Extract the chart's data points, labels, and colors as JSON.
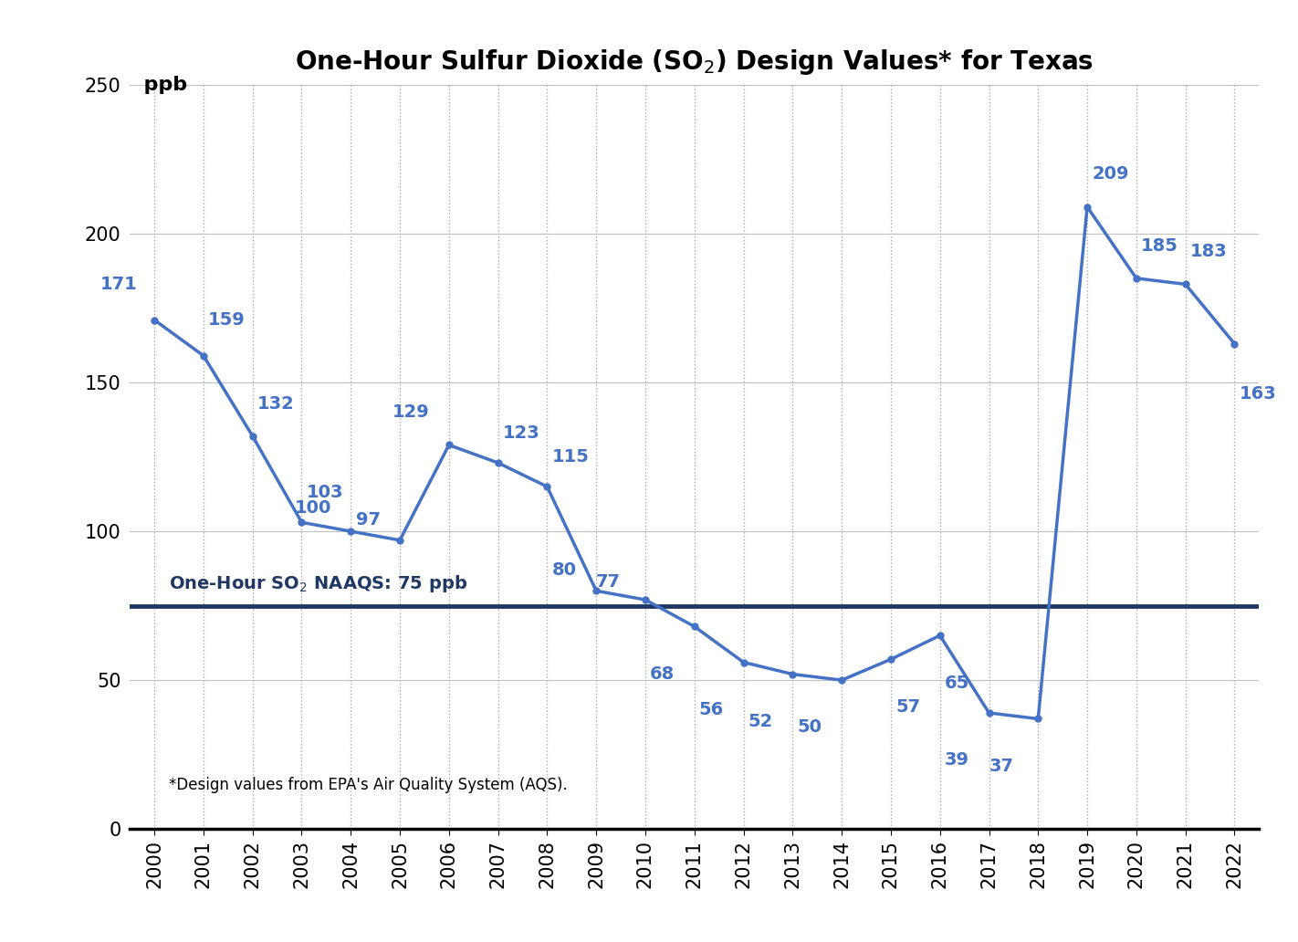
{
  "years": [
    2000,
    2001,
    2002,
    2003,
    2004,
    2005,
    2006,
    2007,
    2008,
    2009,
    2010,
    2011,
    2012,
    2013,
    2014,
    2015,
    2016,
    2017,
    2018,
    2019,
    2020,
    2021,
    2022
  ],
  "values": [
    171,
    159,
    132,
    103,
    100,
    97,
    129,
    123,
    115,
    80,
    77,
    68,
    56,
    52,
    50,
    57,
    65,
    39,
    37,
    209,
    185,
    183,
    163
  ],
  "naaqs_value": 75,
  "title": "One-Hour Sulfur Dioxide (SO$_2$) Design Values* for Texas",
  "ylabel": "ppb",
  "naaqs_label": "One-Hour SO$_2$ NAAQS: 75 ppb",
  "footnote": "*Design values from EPA's Air Quality System (AQS).",
  "line_color": "#4472C4",
  "naaqs_color": "#1F3864",
  "text_color": "#4472C4",
  "ylim": [
    0,
    250
  ],
  "yticks": [
    0,
    50,
    100,
    150,
    200,
    250
  ],
  "xlim": [
    1999.5,
    2022.5
  ],
  "background_color": "#FFFFFF",
  "grid_color_h": "#C0C0C0",
  "grid_color_v": "#AAAAAA",
  "title_fontsize": 20,
  "tick_fontsize": 15,
  "naaqs_fontsize": 14,
  "footnote_fontsize": 12,
  "data_label_fontsize": 14,
  "ppb_fontsize": 16
}
